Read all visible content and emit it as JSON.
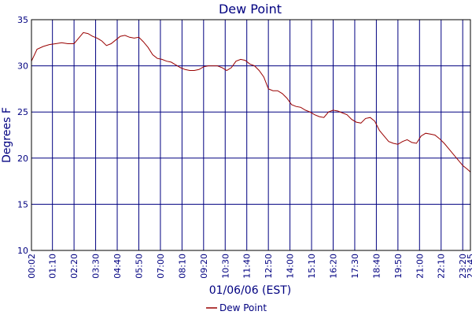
{
  "chart_data": {
    "type": "line",
    "title": "Dew Point",
    "xlabel": "01/06/06 (EST)",
    "ylabel": "Degrees F",
    "ylim": [
      10,
      35
    ],
    "yticks": [
      10,
      15,
      20,
      25,
      30,
      35
    ],
    "xlim": [
      "00:02",
      "23:45"
    ],
    "xticks": [
      "00:02",
      "01:10",
      "02:20",
      "03:30",
      "04:40",
      "05:50",
      "07:00",
      "08:10",
      "09:20",
      "10:30",
      "11:40",
      "12:50",
      "14:00",
      "15:10",
      "16:20",
      "17:30",
      "18:40",
      "19:50",
      "21:00",
      "22:10",
      "23:20",
      "23:45"
    ],
    "grid": true,
    "legend": "bottom-center",
    "colors": {
      "background": "#ffffff",
      "grid": "#000080",
      "series": "#990000",
      "text": "#000080"
    },
    "series": [
      {
        "name": "Dew Point",
        "x": [
          "00:02",
          "00:20",
          "00:40",
          "01:00",
          "01:20",
          "01:40",
          "02:00",
          "02:20",
          "02:35",
          "02:50",
          "03:05",
          "03:20",
          "03:35",
          "03:50",
          "04:05",
          "04:20",
          "04:35",
          "04:50",
          "05:05",
          "05:20",
          "05:35",
          "05:50",
          "06:05",
          "06:20",
          "06:35",
          "06:50",
          "07:05",
          "07:20",
          "07:35",
          "07:50",
          "08:05",
          "08:20",
          "08:35",
          "08:50",
          "09:05",
          "09:20",
          "09:35",
          "09:50",
          "10:05",
          "10:20",
          "10:35",
          "10:50",
          "11:05",
          "11:20",
          "11:35",
          "11:50",
          "12:05",
          "12:20",
          "12:35",
          "12:50",
          "13:05",
          "13:20",
          "13:35",
          "13:50",
          "14:05",
          "14:20",
          "14:35",
          "14:50",
          "15:05",
          "15:20",
          "15:35",
          "15:50",
          "16:05",
          "16:20",
          "16:35",
          "16:50",
          "17:05",
          "17:20",
          "17:35",
          "17:50",
          "18:05",
          "18:20",
          "18:35",
          "18:50",
          "19:05",
          "19:20",
          "19:35",
          "19:50",
          "20:05",
          "20:20",
          "20:35",
          "20:50",
          "21:05",
          "21:20",
          "21:35",
          "21:50",
          "22:05",
          "22:20",
          "22:35",
          "22:50",
          "23:05",
          "23:20",
          "23:35",
          "23:45"
        ],
        "values": [
          30.5,
          31.8,
          32.1,
          32.3,
          32.4,
          32.5,
          32.4,
          32.4,
          33.0,
          33.6,
          33.5,
          33.2,
          33.0,
          32.7,
          32.2,
          32.4,
          32.8,
          33.2,
          33.3,
          33.1,
          33.0,
          33.1,
          32.6,
          32.0,
          31.2,
          30.8,
          30.7,
          30.5,
          30.4,
          30.1,
          29.8,
          29.6,
          29.5,
          29.5,
          29.6,
          29.9,
          30.0,
          30.0,
          30.0,
          29.8,
          29.5,
          29.8,
          30.5,
          30.7,
          30.6,
          30.2,
          30.0,
          29.5,
          28.8,
          27.5,
          27.3,
          27.3,
          27.0,
          26.5,
          25.8,
          25.6,
          25.5,
          25.2,
          25.0,
          24.7,
          24.5,
          24.4,
          25.0,
          25.2,
          25.1,
          24.9,
          24.7,
          24.2,
          23.9,
          23.8,
          24.3,
          24.4,
          24.0,
          23.0,
          22.4,
          21.8,
          21.6,
          21.5,
          21.8,
          22.0,
          21.7,
          21.6,
          22.4,
          22.7,
          22.6,
          22.5,
          22.1,
          21.6,
          21.0,
          20.4,
          19.8,
          19.2,
          18.8,
          18.5
        ]
      }
    ]
  }
}
